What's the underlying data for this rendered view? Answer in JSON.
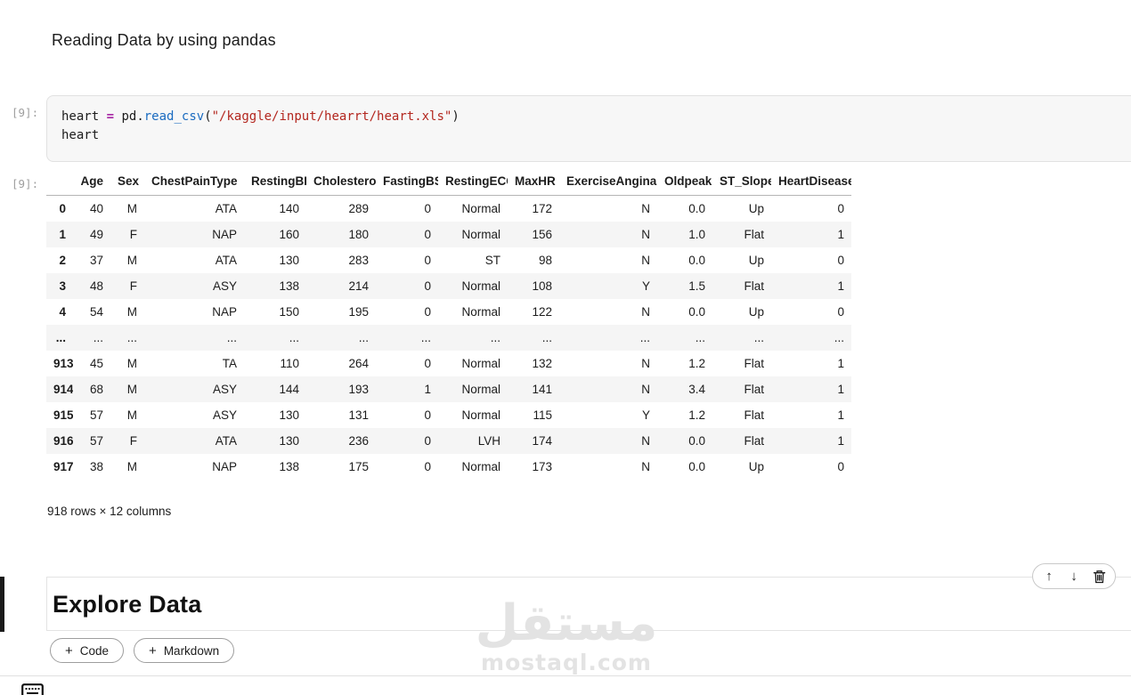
{
  "notebook": {
    "markdown_heading": "Reading Data by using pandas",
    "code_cell": {
      "input_prompt": "[9]:",
      "lines": [
        {
          "tokens": [
            {
              "t": "heart ",
              "c": "plain"
            },
            {
              "t": "=",
              "c": "op"
            },
            {
              "t": " pd",
              "c": "plain"
            },
            {
              "t": ".",
              "c": "plain"
            },
            {
              "t": "read_csv",
              "c": "func"
            },
            {
              "t": "(",
              "c": "plain"
            },
            {
              "t": "\"/kaggle/input/hearrt/heart.xls\"",
              "c": "str"
            },
            {
              "t": ")",
              "c": "plain"
            }
          ]
        },
        {
          "tokens": [
            {
              "t": "heart",
              "c": "plain"
            }
          ]
        }
      ]
    },
    "output_cell": {
      "output_prompt": "[9]:",
      "table": {
        "columns": [
          "Age",
          "Sex",
          "ChestPainType",
          "RestingBP",
          "Cholesterol",
          "FastingBS",
          "RestingECG",
          "MaxHR",
          "ExerciseAngina",
          "Oldpeak",
          "ST_Slope",
          "HeartDisease"
        ],
        "rows": [
          {
            "index": "0",
            "cells": [
              "40",
              "M",
              "ATA",
              "140",
              "289",
              "0",
              "Normal",
              "172",
              "N",
              "0.0",
              "Up",
              "0"
            ]
          },
          {
            "index": "1",
            "cells": [
              "49",
              "F",
              "NAP",
              "160",
              "180",
              "0",
              "Normal",
              "156",
              "N",
              "1.0",
              "Flat",
              "1"
            ]
          },
          {
            "index": "2",
            "cells": [
              "37",
              "M",
              "ATA",
              "130",
              "283",
              "0",
              "ST",
              "98",
              "N",
              "0.0",
              "Up",
              "0"
            ]
          },
          {
            "index": "3",
            "cells": [
              "48",
              "F",
              "ASY",
              "138",
              "214",
              "0",
              "Normal",
              "108",
              "Y",
              "1.5",
              "Flat",
              "1"
            ]
          },
          {
            "index": "4",
            "cells": [
              "54",
              "M",
              "NAP",
              "150",
              "195",
              "0",
              "Normal",
              "122",
              "N",
              "0.0",
              "Up",
              "0"
            ]
          },
          {
            "index": "...",
            "cells": [
              "...",
              "...",
              "...",
              "...",
              "...",
              "...",
              "...",
              "...",
              "...",
              "...",
              "...",
              "..."
            ]
          },
          {
            "index": "913",
            "cells": [
              "45",
              "M",
              "TA",
              "110",
              "264",
              "0",
              "Normal",
              "132",
              "N",
              "1.2",
              "Flat",
              "1"
            ]
          },
          {
            "index": "914",
            "cells": [
              "68",
              "M",
              "ASY",
              "144",
              "193",
              "1",
              "Normal",
              "141",
              "N",
              "3.4",
              "Flat",
              "1"
            ]
          },
          {
            "index": "915",
            "cells": [
              "57",
              "M",
              "ASY",
              "130",
              "131",
              "0",
              "Normal",
              "115",
              "Y",
              "1.2",
              "Flat",
              "1"
            ]
          },
          {
            "index": "916",
            "cells": [
              "57",
              "F",
              "ATA",
              "130",
              "236",
              "0",
              "LVH",
              "174",
              "N",
              "0.0",
              "Flat",
              "1"
            ]
          },
          {
            "index": "917",
            "cells": [
              "38",
              "M",
              "NAP",
              "138",
              "175",
              "0",
              "Normal",
              "173",
              "N",
              "0.0",
              "Up",
              "0"
            ]
          }
        ],
        "summary": "918 rows × 12 columns"
      }
    },
    "explore_cell": {
      "heading": "Explore Data"
    },
    "cell_toolbar": {
      "move_up_glyph": "↑",
      "move_down_glyph": "↓"
    },
    "add_buttons": {
      "plus": "+",
      "code_label": "Code",
      "markdown_label": "Markdown"
    },
    "watermark": {
      "arabic": "مستقل",
      "site": "mostaql.com"
    },
    "colors": {
      "function_blue": "#1a6bc0",
      "string_red": "#b3261e",
      "operator_purple": "#a626a4",
      "prompt_gray": "#9e9e9e",
      "stripe_gray": "#f5f5f5",
      "cell_bg": "#f7f7f7"
    }
  }
}
